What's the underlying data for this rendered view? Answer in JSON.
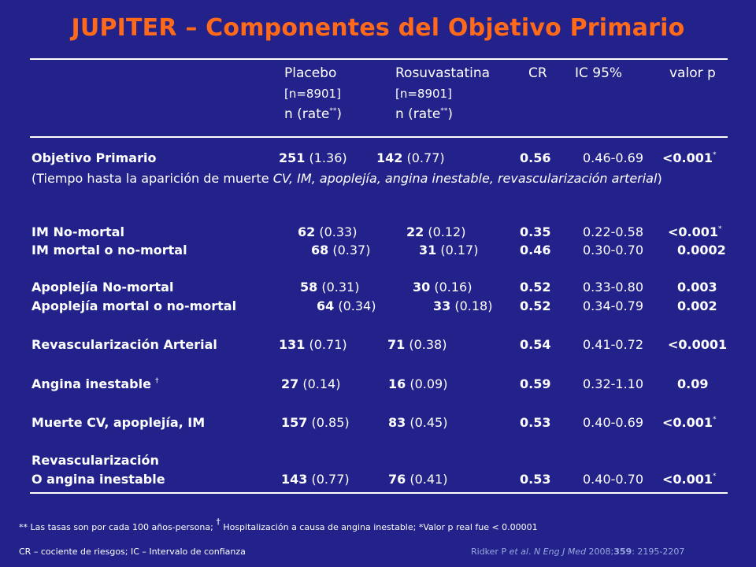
{
  "title": "JUPITER – Componentes del Objetivo Primario",
  "header": {
    "placebo": "Placebo",
    "placebo_n": "[n=8901]",
    "placebo_rate_label": "n (rate",
    "rate_marker": "**",
    "rosuva": "Rosuvastatina",
    "rosuva_n": "[n=8901]",
    "rosuva_rate_label": "n (rate",
    "close_paren": ")",
    "cr": "CR",
    "ic": "IC 95%",
    "p": "valor p"
  },
  "primary": {
    "label": "Objetivo Primario",
    "pl_n": "251",
    "pl_rate": "(1.36)",
    "ro_n": "142",
    "ro_rate": "(0.77)",
    "cr": "0.56",
    "ic": "0.46-0.69",
    "p": "<0.001",
    "p_mark": "*",
    "note_a": "(Tiempo hasta la aparición de muerte ",
    "note_b": "CV, IM, apoplejía, angina inestable, revascularización arterial",
    "note_c": ")"
  },
  "rows": [
    {
      "label": "IM No-mortal",
      "pl_n": "62",
      "pl_rate": "(0.33)",
      "ro_n": "22",
      "ro_rate": "(0.12)",
      "cr": "0.35",
      "ic": "0.22-0.58",
      "p": "<0.001",
      "p_mark": "*"
    },
    {
      "label": "IM mortal o no-mortal",
      "pl_n": "68",
      "pl_rate": "(0.37)",
      "ro_n": "31",
      "ro_rate": "(0.17)",
      "cr": "0.46",
      "ic": "0.30-0.70",
      "p": "0.0002",
      "p_mark": ""
    },
    {
      "label": "Apoplejía No-mortal",
      "pl_n": "58",
      "pl_rate": "(0.31)",
      "ro_n": "30",
      "ro_rate": "(0.16)",
      "cr": "0.52",
      "ic": "0.33-0.80",
      "p": "0.003",
      "p_mark": ""
    },
    {
      "label": "Apoplejía mortal o no-mortal",
      "pl_n": "64",
      "pl_rate": "(0.34)",
      "ro_n": "33",
      "ro_rate": "(0.18)",
      "cr": "0.52",
      "ic": "0.34-0.79",
      "p": "0.002",
      "p_mark": ""
    },
    {
      "label": "Revascularización Arterial",
      "pl_n": "131",
      "pl_rate": "(0.71)",
      "ro_n": "71",
      "ro_rate": "(0.38)",
      "cr": "0.54",
      "ic": "0.41-0.72",
      "p": "<0.0001",
      "p_mark": ""
    },
    {
      "label": "Angina inestable",
      "label_mark": "†",
      "pl_n": "27",
      "pl_rate": "(0.14)",
      "ro_n": "16",
      "ro_rate": "(0.09)",
      "cr": "0.59",
      "ic": "0.32-1.10",
      "p": "0.09",
      "p_mark": ""
    },
    {
      "label": "Muerte CV, apoplejía, IM",
      "pl_n": "157",
      "pl_rate": "(0.85)",
      "ro_n": "83",
      "ro_rate": "(0.45)",
      "cr": "0.53",
      "ic": "0.40-0.69",
      "p": "<0.001",
      "p_mark": "*"
    },
    {
      "label": "Revascularización",
      "label2": "O angina inestable",
      "pl_n": "143",
      "pl_rate": "(0.77)",
      "ro_n": "76",
      "ro_rate": "(0.41)",
      "cr": "0.53",
      "ic": "0.40-0.70",
      "p": "<0.001",
      "p_mark": "*"
    }
  ],
  "footnotes": {
    "line1_a": "** Las tasas son por cada 100 años-persona;",
    "line1_dagger": "†",
    "line1_b": "Hospitalización  a causa de angina inestable; *Valor p real fue < 0.00001",
    "line2_left": "CR – cociente de riesgos; IC – Intervalo de confianza",
    "cite_a": "Ridker P ",
    "cite_b": "et al",
    "cite_c": ". ",
    "cite_d": "N Eng J Med",
    "cite_e": " 2008;",
    "cite_f": "359",
    "cite_g": ":  2195-2207"
  },
  "colors": {
    "background": "#22228a",
    "title": "#ff6a1a",
    "text": "#ffffff",
    "citation": "#9aa6e0"
  }
}
